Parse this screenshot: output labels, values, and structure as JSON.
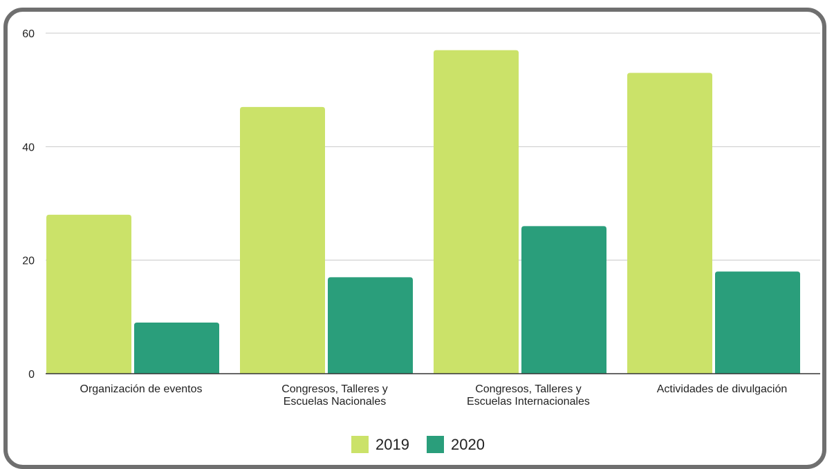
{
  "chart_data": {
    "type": "bar",
    "categories": [
      [
        "Organización de eventos"
      ],
      [
        "Congresos, Talleres y",
        "Escuelas Nacionales"
      ],
      [
        "Congresos, Talleres y",
        "Escuelas Internacionales"
      ],
      [
        "Actividades de divulgación"
      ]
    ],
    "series": [
      {
        "name": "2019",
        "color": "#cbe269",
        "values": [
          28,
          47,
          57,
          53
        ]
      },
      {
        "name": "2020",
        "color": "#2a9e7b",
        "values": [
          9,
          17,
          26,
          18
        ]
      }
    ],
    "ylim": [
      0,
      60
    ],
    "yticks": [
      0,
      20,
      40,
      60
    ],
    "grid": true,
    "legend": "bottom-center"
  }
}
